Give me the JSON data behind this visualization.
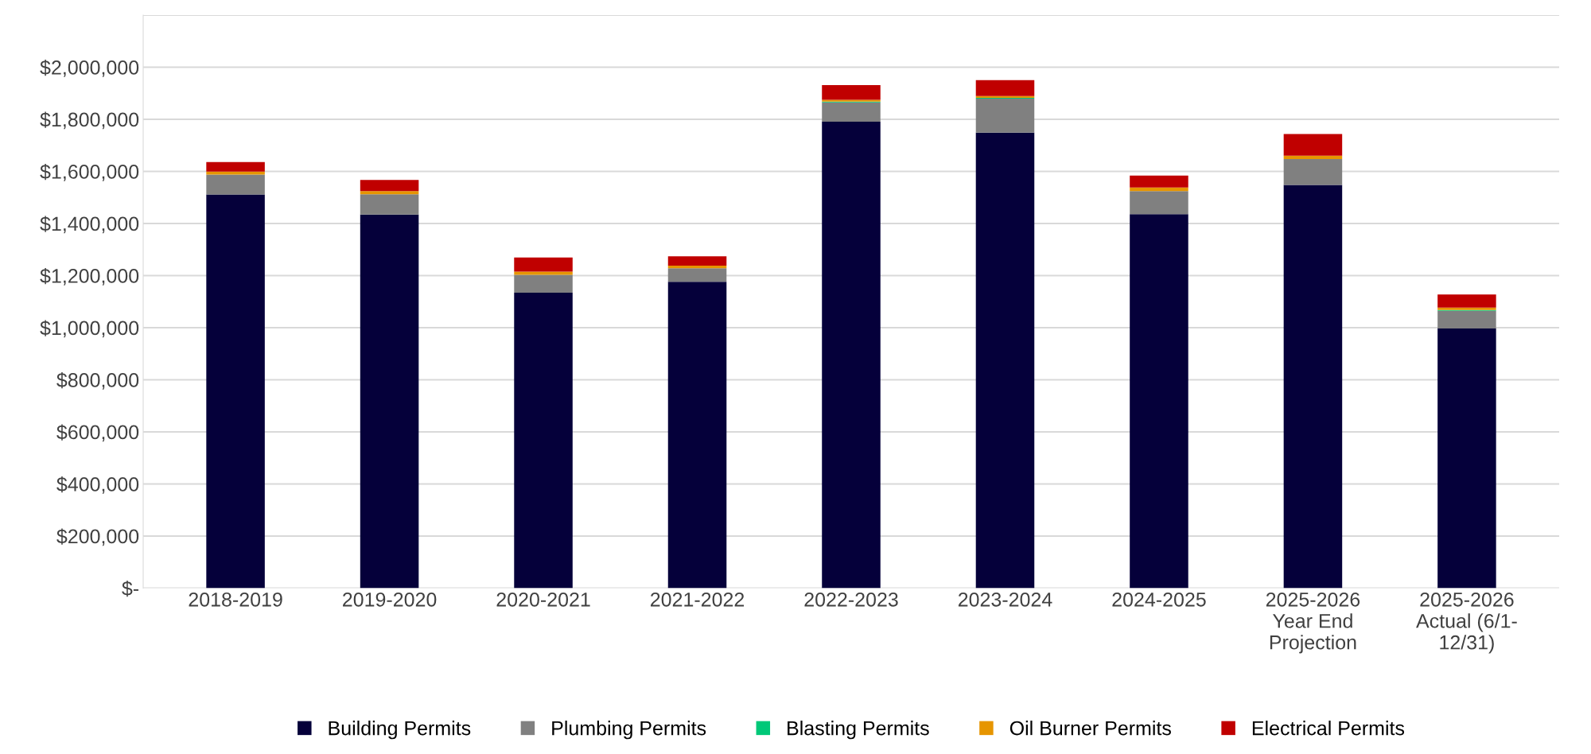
{
  "chart_data": {
    "type": "bar",
    "stacked": true,
    "categories": [
      "2018-2019",
      "2019-2020",
      "2020-2021",
      "2021-2022",
      "2022-2023",
      "2023-2024",
      "2024-2025",
      "2025-2026\nYear End\nProjection",
      "2025-2026\nActual (6/1-\n12/31)"
    ],
    "series": [
      {
        "name": "Building Permits",
        "color": "#05003a",
        "values": [
          1511000,
          1434000,
          1134000,
          1176000,
          1791000,
          1749000,
          1436000,
          1548000,
          997000
        ]
      },
      {
        "name": "Plumbing Permits",
        "color": "#808080",
        "values": [
          77000,
          78000,
          69000,
          52000,
          74000,
          130000,
          88000,
          99000,
          68000
        ]
      },
      {
        "name": "Blasting Permits",
        "color": "#00c878",
        "values": [
          0,
          0,
          0,
          0,
          3000,
          3000,
          0,
          0,
          3000
        ]
      },
      {
        "name": "Oil Burner Permits",
        "color": "#e69500",
        "values": [
          11000,
          12000,
          12000,
          10000,
          7000,
          7000,
          14000,
          13000,
          9000
        ]
      },
      {
        "name": "Electrical Permits",
        "color": "#c00000",
        "values": [
          37000,
          43000,
          54000,
          36000,
          56000,
          61000,
          46000,
          83000,
          50000
        ]
      }
    ],
    "ylim": [
      0,
      2200000
    ],
    "yticks": [
      {
        "value": 0,
        "label": "$-"
      },
      {
        "value": 200000,
        "label": "$200,000"
      },
      {
        "value": 400000,
        "label": "$400,000"
      },
      {
        "value": 600000,
        "label": "$600,000"
      },
      {
        "value": 800000,
        "label": "$800,000"
      },
      {
        "value": 1000000,
        "label": "$1,000,000"
      },
      {
        "value": 1200000,
        "label": "$1,200,000"
      },
      {
        "value": 1400000,
        "label": "$1,400,000"
      },
      {
        "value": 1600000,
        "label": "$1,600,000"
      },
      {
        "value": 1800000,
        "label": "$1,800,000"
      },
      {
        "value": 2000000,
        "label": "$2,000,000"
      },
      {
        "value": 2200000,
        "label": null
      }
    ],
    "grid": "y",
    "legend": "bottom"
  }
}
